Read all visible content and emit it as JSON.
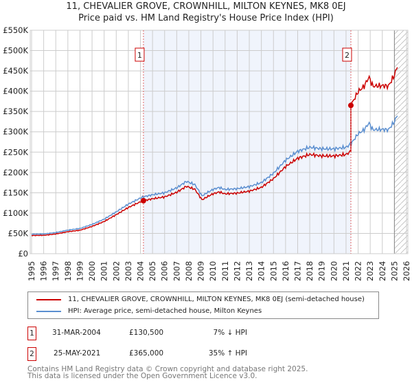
{
  "chart_data": {
    "type": "line",
    "title": "11, CHEVALIER GROVE, CROWNHILL, MILTON KEYNES, MK8 0EJ",
    "subtitle": "Price paid vs. HM Land Registry's House Price Index (HPI)",
    "xlim": [
      1995,
      2026
    ],
    "ylim": [
      0,
      550000
    ],
    "y_ticks": [
      {
        "v": 0,
        "label": "£0"
      },
      {
        "v": 50000,
        "label": "£50K"
      },
      {
        "v": 100000,
        "label": "£100K"
      },
      {
        "v": 150000,
        "label": "£150K"
      },
      {
        "v": 200000,
        "label": "£200K"
      },
      {
        "v": 250000,
        "label": "£250K"
      },
      {
        "v": 300000,
        "label": "£300K"
      },
      {
        "v": 350000,
        "label": "£350K"
      },
      {
        "v": 400000,
        "label": "£400K"
      },
      {
        "v": 450000,
        "label": "£450K"
      },
      {
        "v": 500000,
        "label": "£500K"
      },
      {
        "v": 550000,
        "label": "£550K"
      }
    ],
    "x_ticks": [
      "1995",
      "1996",
      "1997",
      "1998",
      "1999",
      "2000",
      "2001",
      "2002",
      "2003",
      "2004",
      "2005",
      "2006",
      "2007",
      "2008",
      "2009",
      "2010",
      "2011",
      "2012",
      "2013",
      "2014",
      "2015",
      "2016",
      "2017",
      "2018",
      "2019",
      "2020",
      "2021",
      "2022",
      "2023",
      "2024",
      "2025",
      "2026"
    ],
    "grid": true,
    "hatched_from": 2025.0,
    "hpi_series": {
      "name": "HPI: Average price, semi-detached house, Milton Keynes",
      "color": "#5b8fd0",
      "x": [
        1995,
        1996,
        1997,
        1998,
        1999,
        2000,
        2001,
        2002,
        2003,
        2004,
        2004.25,
        2005,
        2006,
        2007,
        2007.8,
        2008.5,
        2009.1,
        2009.5,
        2010,
        2010.5,
        2011,
        2012,
        2013,
        2014,
        2015,
        2016,
        2017,
        2018,
        2019,
        2020,
        2021,
        2021.4,
        2022,
        2022.5,
        2022.9,
        2023.2,
        2024,
        2024.5,
        2025,
        2025.3
      ],
      "y": [
        48000,
        48500,
        52000,
        58000,
        62000,
        72000,
        85000,
        103000,
        122000,
        137000,
        140000,
        145000,
        150000,
        162000,
        178000,
        170000,
        142000,
        150000,
        158000,
        163000,
        158000,
        160000,
        165000,
        175000,
        198000,
        230000,
        252000,
        262000,
        258000,
        258000,
        262000,
        270000,
        295000,
        305000,
        322000,
        305000,
        306000,
        305000,
        325000,
        345000
      ]
    },
    "sales": [
      {
        "x": 2004.25,
        "y": 130500
      },
      {
        "x": 2021.4,
        "y": 365000
      }
    ],
    "property_series": {
      "name": "11, CHEVALIER GROVE, CROWNHILL, MILTON KEYNES, MK8 0EJ (semi-detached house)",
      "color": "#cc0000"
    }
  },
  "transactions": [
    {
      "num": "1",
      "date": "31-MAR-2004",
      "price": "£130,500",
      "hpi": "7% ↓ HPI"
    },
    {
      "num": "2",
      "date": "25-MAY-2021",
      "price": "£365,000",
      "hpi": "35% ↑ HPI"
    }
  ],
  "footer": {
    "line1": "Contains HM Land Registry data © Crown copyright and database right 2025.",
    "line2": "This data is licensed under the Open Government Licence v3.0."
  }
}
